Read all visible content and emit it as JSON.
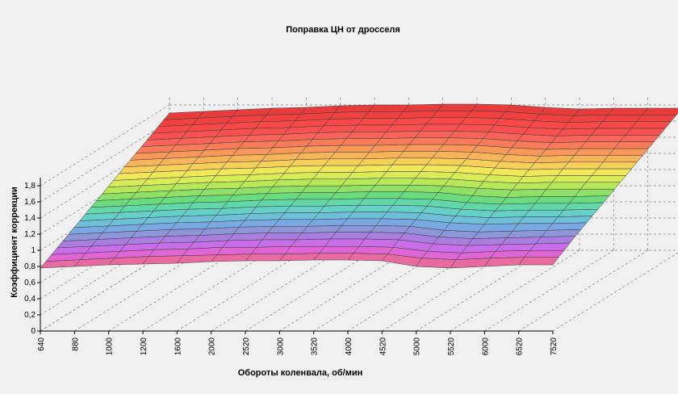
{
  "chart_data": {
    "type": "surface",
    "title": "Поправка ЦН от дросселя",
    "xlabel": "Обороты коленвала, об/мин",
    "ylabel": "Коэффициент коррекции",
    "x": [
      640,
      880,
      1000,
      1200,
      1600,
      2000,
      2520,
      3000,
      3520,
      4000,
      4520,
      5000,
      5520,
      6000,
      6520,
      7520
    ],
    "x_tick_labels": [
      "640",
      "880",
      "1000",
      "1200",
      "1600",
      "2000",
      "2520",
      "3000",
      "3520",
      "4000",
      "4520",
      "5000",
      "5520",
      "6000",
      "6520",
      "7520"
    ],
    "y_ticks": [
      0,
      0.2,
      0.4,
      0.6,
      0.8,
      1,
      1.2,
      1.4,
      1.6,
      1.8
    ],
    "y_tick_labels": [
      "0",
      "0,2",
      "0,4",
      "0,6",
      "0,8",
      "1",
      "1,2",
      "1,4",
      "1,6",
      "1,8"
    ],
    "ylim": [
      0,
      1.9
    ],
    "grid": true,
    "series": [
      {
        "values": [
          0.78,
          0.8,
          0.82,
          0.83,
          0.84,
          0.86,
          0.87,
          0.87,
          0.88,
          0.88,
          0.87,
          0.8,
          0.78,
          0.8,
          0.82,
          0.82
        ]
      },
      {
        "values": [
          0.82,
          0.84,
          0.86,
          0.88,
          0.89,
          0.9,
          0.91,
          0.91,
          0.92,
          0.92,
          0.91,
          0.86,
          0.84,
          0.86,
          0.87,
          0.87
        ]
      },
      {
        "values": [
          0.86,
          0.88,
          0.9,
          0.92,
          0.93,
          0.95,
          0.95,
          0.96,
          0.96,
          0.96,
          0.95,
          0.9,
          0.88,
          0.9,
          0.91,
          0.91
        ]
      },
      {
        "values": [
          0.9,
          0.92,
          0.94,
          0.96,
          0.97,
          0.99,
          1.0,
          1.0,
          1.01,
          1.01,
          1.0,
          0.95,
          0.93,
          0.94,
          0.95,
          0.96
        ]
      },
      {
        "values": [
          0.94,
          0.96,
          0.98,
          1.0,
          1.01,
          1.03,
          1.04,
          1.04,
          1.05,
          1.05,
          1.04,
          0.99,
          0.97,
          0.98,
          0.99,
          1.0
        ]
      },
      {
        "values": [
          0.98,
          1.0,
          1.02,
          1.04,
          1.05,
          1.07,
          1.08,
          1.08,
          1.09,
          1.09,
          1.08,
          1.03,
          1.01,
          1.02,
          1.03,
          1.04
        ]
      },
      {
        "values": [
          1.02,
          1.04,
          1.06,
          1.08,
          1.09,
          1.11,
          1.12,
          1.12,
          1.13,
          1.13,
          1.12,
          1.08,
          1.06,
          1.07,
          1.07,
          1.08
        ]
      },
      {
        "values": [
          1.06,
          1.08,
          1.1,
          1.12,
          1.13,
          1.15,
          1.16,
          1.16,
          1.17,
          1.17,
          1.16,
          1.12,
          1.1,
          1.11,
          1.11,
          1.12
        ]
      },
      {
        "values": [
          1.1,
          1.12,
          1.14,
          1.16,
          1.17,
          1.19,
          1.2,
          1.2,
          1.21,
          1.21,
          1.2,
          1.16,
          1.14,
          1.15,
          1.15,
          1.16
        ]
      },
      {
        "values": [
          1.14,
          1.16,
          1.18,
          1.2,
          1.21,
          1.23,
          1.24,
          1.24,
          1.25,
          1.25,
          1.24,
          1.2,
          1.18,
          1.19,
          1.19,
          1.2
        ]
      },
      {
        "values": [
          1.18,
          1.2,
          1.22,
          1.24,
          1.25,
          1.27,
          1.28,
          1.28,
          1.29,
          1.29,
          1.28,
          1.24,
          1.22,
          1.23,
          1.23,
          1.24
        ]
      },
      {
        "values": [
          1.22,
          1.24,
          1.26,
          1.28,
          1.29,
          1.31,
          1.32,
          1.32,
          1.33,
          1.33,
          1.32,
          1.29,
          1.27,
          1.28,
          1.28,
          1.28
        ]
      },
      {
        "values": [
          1.26,
          1.28,
          1.3,
          1.32,
          1.33,
          1.35,
          1.36,
          1.36,
          1.37,
          1.37,
          1.36,
          1.33,
          1.31,
          1.32,
          1.32,
          1.32
        ]
      },
      {
        "values": [
          1.3,
          1.32,
          1.34,
          1.36,
          1.37,
          1.39,
          1.4,
          1.4,
          1.41,
          1.41,
          1.4,
          1.37,
          1.35,
          1.36,
          1.36,
          1.36
        ]
      },
      {
        "values": [
          1.34,
          1.36,
          1.38,
          1.4,
          1.41,
          1.43,
          1.44,
          1.44,
          1.45,
          1.45,
          1.44,
          1.41,
          1.39,
          1.4,
          1.4,
          1.4
        ]
      },
      {
        "values": [
          1.38,
          1.4,
          1.42,
          1.44,
          1.45,
          1.47,
          1.48,
          1.48,
          1.49,
          1.49,
          1.48,
          1.45,
          1.43,
          1.44,
          1.44,
          1.44
        ]
      },
      {
        "values": [
          1.42,
          1.44,
          1.46,
          1.48,
          1.49,
          1.51,
          1.52,
          1.52,
          1.53,
          1.53,
          1.52,
          1.49,
          1.47,
          1.48,
          1.48,
          1.48
        ]
      },
      {
        "values": [
          1.46,
          1.48,
          1.5,
          1.52,
          1.53,
          1.55,
          1.56,
          1.56,
          1.57,
          1.57,
          1.56,
          1.53,
          1.51,
          1.52,
          1.52,
          1.52
        ]
      },
      {
        "values": [
          1.5,
          1.52,
          1.54,
          1.56,
          1.57,
          1.59,
          1.6,
          1.6,
          1.61,
          1.61,
          1.6,
          1.57,
          1.55,
          1.56,
          1.56,
          1.56
        ]
      },
      {
        "values": [
          1.54,
          1.56,
          1.58,
          1.6,
          1.61,
          1.63,
          1.64,
          1.64,
          1.65,
          1.65,
          1.64,
          1.61,
          1.59,
          1.6,
          1.6,
          1.6
        ]
      },
      {
        "values": [
          1.58,
          1.6,
          1.62,
          1.64,
          1.65,
          1.67,
          1.68,
          1.68,
          1.69,
          1.69,
          1.68,
          1.65,
          1.63,
          1.64,
          1.64,
          1.64
        ]
      },
      {
        "values": [
          1.62,
          1.64,
          1.66,
          1.68,
          1.69,
          1.71,
          1.72,
          1.72,
          1.73,
          1.73,
          1.72,
          1.69,
          1.67,
          1.68,
          1.68,
          1.68
        ]
      },
      {
        "values": [
          1.66,
          1.68,
          1.7,
          1.72,
          1.73,
          1.75,
          1.76,
          1.76,
          1.77,
          1.77,
          1.76,
          1.73,
          1.71,
          1.72,
          1.72,
          1.72
        ]
      },
      {
        "values": [
          1.7,
          1.72,
          1.74,
          1.76,
          1.77,
          1.79,
          1.8,
          1.8,
          1.81,
          1.81,
          1.8,
          1.77,
          1.75,
          1.76,
          1.76,
          1.76
        ]
      }
    ],
    "colors": [
      "#e86aa0",
      "#df66d4",
      "#c96ee8",
      "#a97ee0",
      "#8e95d8",
      "#7aa8e2",
      "#6ebfd8",
      "#66d0c8",
      "#62d8a8",
      "#6adc7e",
      "#8ee066",
      "#b6e85a",
      "#d8ec5a",
      "#f0e85a",
      "#f6d05a",
      "#f8b45a",
      "#f8985a",
      "#f87c5a",
      "#f8645a",
      "#f85050",
      "#f84848",
      "#f04040",
      "#e83c3c",
      "#e03838"
    ]
  }
}
